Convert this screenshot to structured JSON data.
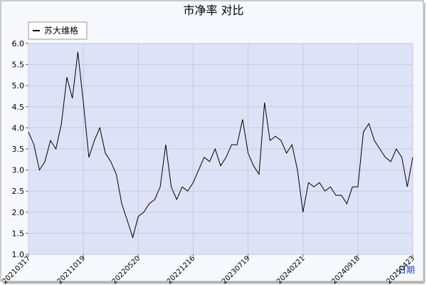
{
  "chart_data": {
    "type": "line",
    "title": "市净率  对比",
    "xlabel": "日期",
    "categories": [
      "20210317",
      null,
      null,
      null,
      null,
      null,
      null,
      null,
      null,
      null,
      "20211019",
      null,
      null,
      null,
      null,
      null,
      null,
      null,
      null,
      null,
      "20220520",
      null,
      null,
      null,
      null,
      null,
      null,
      null,
      null,
      null,
      "20221216",
      null,
      null,
      null,
      null,
      null,
      null,
      null,
      null,
      null,
      "20230719",
      null,
      null,
      null,
      null,
      null,
      null,
      null,
      null,
      null,
      "20240221",
      null,
      null,
      null,
      null,
      null,
      null,
      null,
      null,
      null,
      "20240918",
      null,
      null,
      null,
      null,
      null,
      null,
      null,
      null,
      null,
      "20250423"
    ],
    "series": [
      {
        "name": "苏大维格",
        "color": "#000000",
        "values": [
          3.9,
          3.6,
          3.0,
          3.2,
          3.7,
          3.5,
          4.1,
          5.2,
          4.7,
          5.8,
          4.6,
          3.3,
          3.7,
          4.0,
          3.4,
          3.2,
          2.9,
          2.2,
          1.8,
          1.4,
          1.9,
          2.0,
          2.2,
          2.3,
          2.6,
          3.6,
          2.6,
          2.3,
          2.6,
          2.5,
          2.7,
          3.0,
          3.3,
          3.2,
          3.5,
          3.1,
          3.3,
          3.6,
          3.6,
          4.2,
          3.4,
          3.1,
          2.9,
          4.6,
          3.7,
          3.8,
          3.7,
          3.4,
          3.6,
          3.0,
          2.0,
          2.7,
          2.6,
          2.7,
          2.5,
          2.6,
          2.4,
          2.4,
          2.2,
          2.6,
          2.6,
          3.9,
          4.1,
          3.7,
          3.5,
          3.3,
          3.2,
          3.5,
          3.3,
          2.6,
          3.3
        ]
      }
    ],
    "ylim": [
      1,
      6
    ],
    "yticks": [
      {
        "value": 1,
        "label": "1.0"
      },
      {
        "value": 1.5,
        "label": "1.5"
      },
      {
        "value": 2,
        "label": "2.0"
      },
      {
        "value": 2.5,
        "label": "2.5"
      },
      {
        "value": 3,
        "label": "3.0"
      },
      {
        "value": 3.5,
        "label": "3.5"
      },
      {
        "value": 4,
        "label": "4.0"
      },
      {
        "value": 4.5,
        "label": "4.5"
      },
      {
        "value": 5,
        "label": "5.0"
      },
      {
        "value": 5.5,
        "label": "5.5"
      },
      {
        "value": 6,
        "label": "6.0"
      }
    ],
    "grid": true,
    "legend": "top-left"
  }
}
